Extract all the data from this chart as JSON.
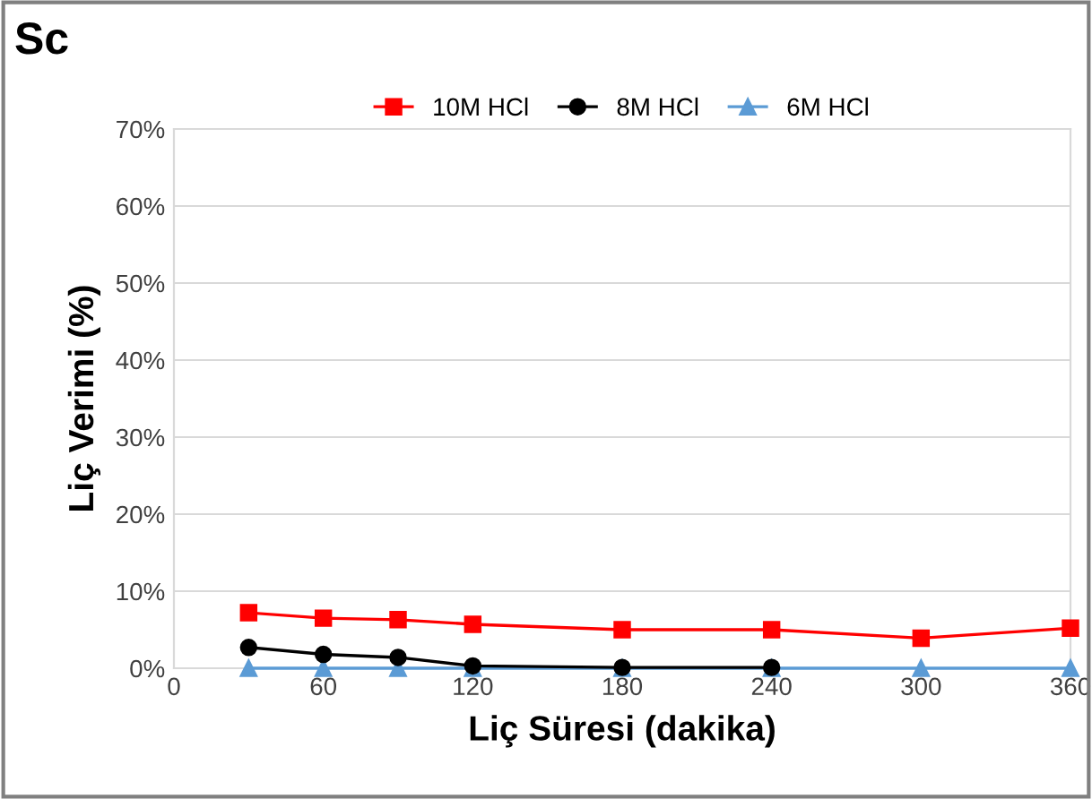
{
  "chart_data": {
    "type": "line",
    "title": "Sc",
    "xlabel": "Liç Süresi (dakika)",
    "ylabel": "Liç Verimi (%)",
    "x": [
      30,
      60,
      90,
      120,
      180,
      240,
      300,
      360
    ],
    "series": [
      {
        "name": "10M HCl",
        "color": "#ff0000",
        "marker": "square",
        "values": [
          7.2,
          6.5,
          6.3,
          5.7,
          5.0,
          5.0,
          3.9,
          5.2
        ]
      },
      {
        "name": "8M HCl",
        "color": "#000000",
        "marker": "circle",
        "x": [
          30,
          60,
          90,
          120,
          180,
          240
        ],
        "values": [
          2.7,
          1.8,
          1.4,
          0.3,
          0.1,
          0.1
        ]
      },
      {
        "name": "6M HCl",
        "color": "#5b9bd5",
        "marker": "triangle",
        "values": [
          0,
          0,
          0,
          0,
          0,
          0,
          0,
          0
        ]
      }
    ],
    "xlim": [
      0,
      360
    ],
    "xticks": [
      0,
      60,
      120,
      180,
      240,
      300,
      360
    ],
    "ylim": [
      0,
      70
    ],
    "yticks": [
      {
        "value": 0,
        "label": "0%"
      },
      {
        "value": 10,
        "label": "10%"
      },
      {
        "value": 20,
        "label": "20%"
      },
      {
        "value": 30,
        "label": "30%"
      },
      {
        "value": 40,
        "label": "40%"
      },
      {
        "value": 50,
        "label": "50%"
      },
      {
        "value": 60,
        "label": "60%"
      },
      {
        "value": 70,
        "label": "70%"
      }
    ],
    "grid": "y",
    "legend": "top"
  }
}
